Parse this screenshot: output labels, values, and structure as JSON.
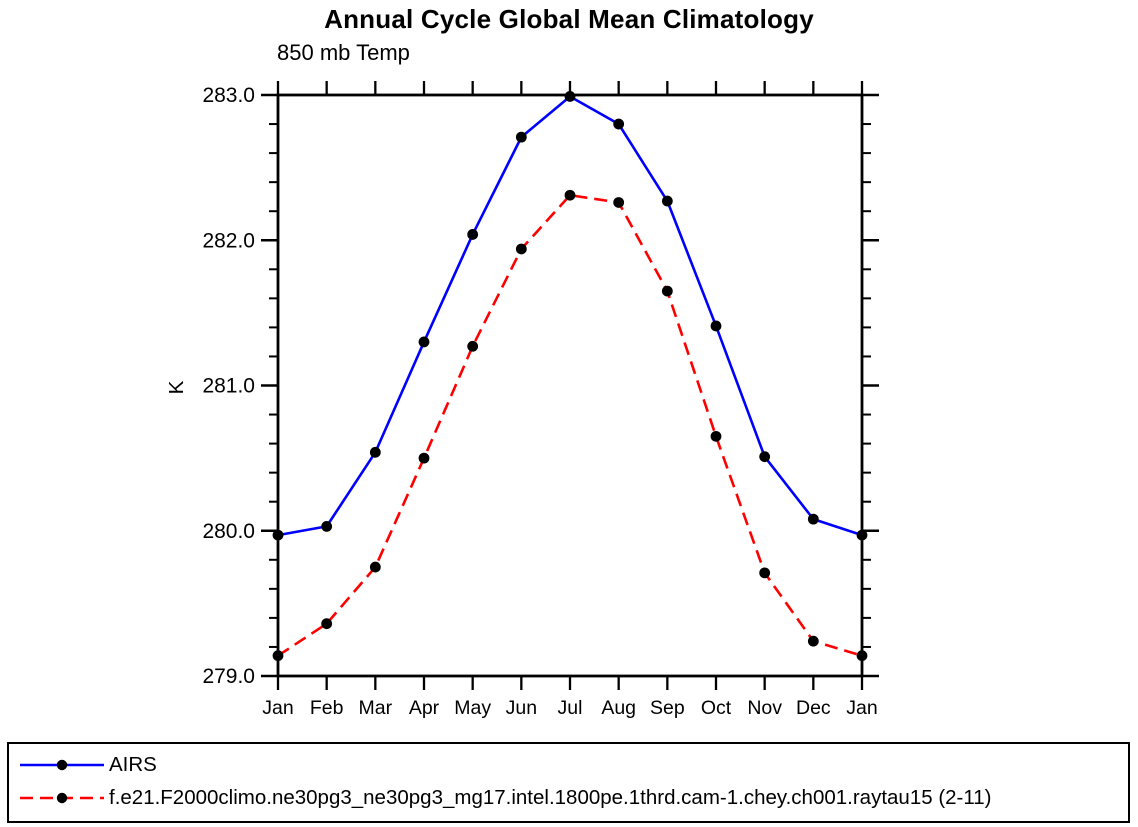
{
  "chart_data": {
    "type": "line",
    "title": "Annual Cycle Global Mean Climatology",
    "subtitle": "850 mb Temp",
    "ylabel": "K",
    "xlabel": "",
    "categories": [
      "Jan",
      "Feb",
      "Mar",
      "Apr",
      "May",
      "Jun",
      "Jul",
      "Aug",
      "Sep",
      "Oct",
      "Nov",
      "Dec",
      "Jan"
    ],
    "ylim": [
      279.0,
      283.0
    ],
    "ytick_step": 1.0,
    "yminor_step": 0.2,
    "ytick_labels": [
      "279.0",
      "280.0",
      "281.0",
      "282.0",
      "283.0"
    ],
    "grid": false,
    "legend_position": "bottom-box",
    "marker": "filled-circle",
    "marker_color": "#000000",
    "axis_color": "#000000",
    "series": [
      {
        "name": "AIRS",
        "color": "#0000ff",
        "line_style": "solid",
        "values": [
          279.97,
          280.03,
          280.54,
          281.3,
          282.04,
          282.71,
          282.99,
          282.8,
          282.27,
          281.41,
          280.51,
          280.08,
          279.97
        ]
      },
      {
        "name": "f.e21.F2000climo.ne30pg3_ne30pg3_mg17.intel.1800pe.1thrd.cam-1.chey.ch001.raytau15 (2-11)",
        "color": "#ff0000",
        "line_style": "dashed",
        "values": [
          279.14,
          279.36,
          279.75,
          280.5,
          281.27,
          281.94,
          282.31,
          282.26,
          281.65,
          280.65,
          279.71,
          279.24,
          279.14
        ]
      }
    ]
  }
}
